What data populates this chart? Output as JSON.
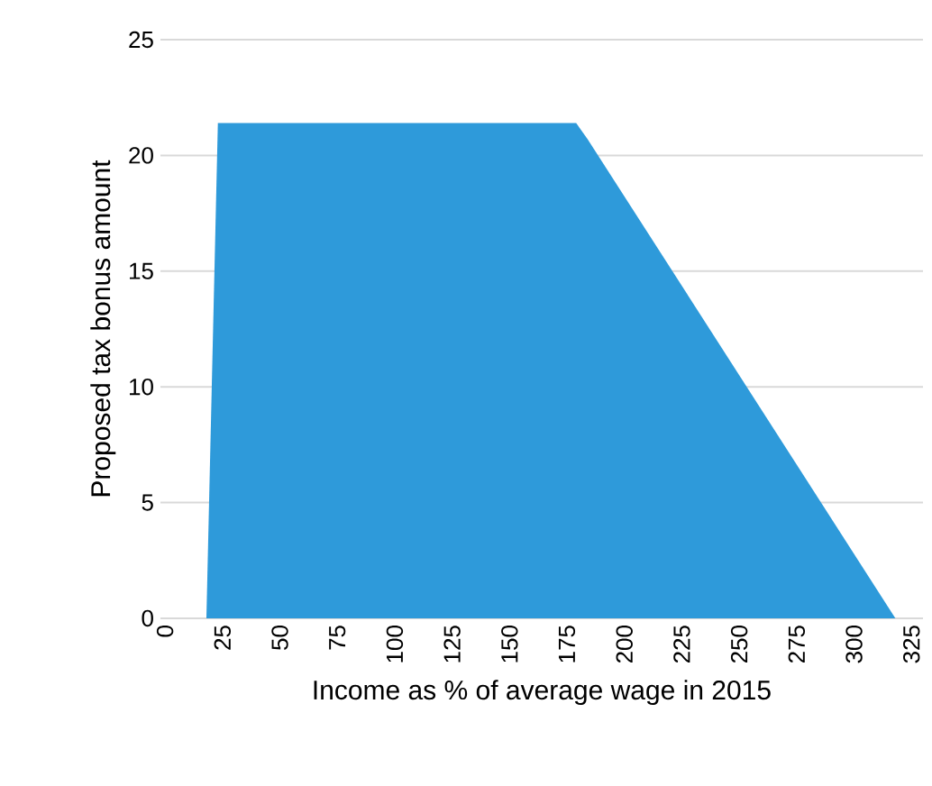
{
  "chart_data": {
    "type": "area",
    "xlabel": "Income as % of average wage in 2015",
    "ylabel": "Proposed tax bonus amount",
    "x": [
      18,
      23,
      179,
      184,
      318
    ],
    "values": [
      0,
      21.4,
      21.4,
      20.7,
      0
    ],
    "color": "#2e9ada",
    "xlim": [
      -2,
      330
    ],
    "ylim": [
      0,
      25
    ],
    "xticks": [
      0,
      25,
      50,
      75,
      100,
      125,
      150,
      175,
      200,
      225,
      250,
      275,
      300,
      325
    ],
    "yticks": [
      0,
      5,
      10,
      15,
      20,
      25
    ],
    "grid": "y"
  }
}
